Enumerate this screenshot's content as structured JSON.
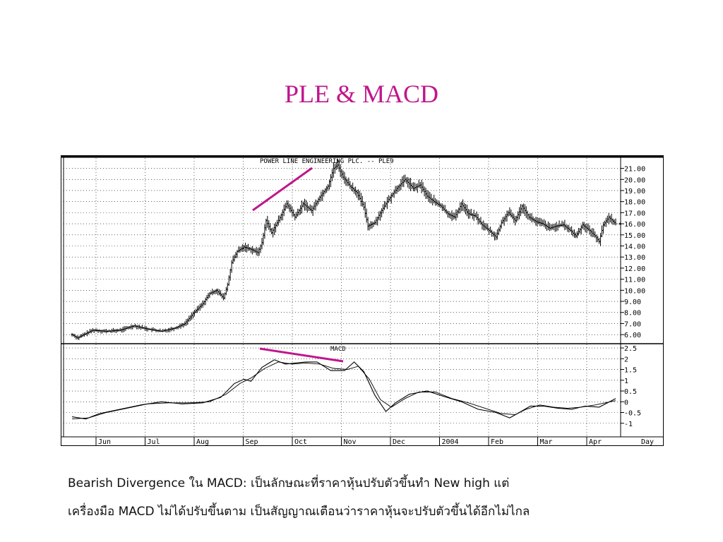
{
  "slide": {
    "title": "PLE & MACD",
    "caption_line_1": "Bearish Divergence ใน MACD: เป็นลักษณะที่ราคาหุ้นปรับตัวขึ้นทำ New high แต่",
    "caption_line_2": "เครื่องมือ MACD ไม่ได้ปรับขึ้นตาม เป็นสัญญาณเตือนว่าราคาหุ้นจะปรับตัวขึ้นได้อีกไม่ไกล"
  },
  "colors": {
    "title": "#c0168c",
    "annotation": "#c0168c",
    "line": "#000000"
  },
  "chart_data": [
    {
      "type": "ohlc",
      "title": "POWER LINE ENGINEERING PLC. -- PLE9",
      "ylim": [
        5.5,
        21.8
      ],
      "yticks": [
        "21.00",
        "20.00",
        "19.00",
        "18.00",
        "17.00",
        "16.00",
        "15.00",
        "14.00",
        "13.00",
        "12.00",
        "11.00",
        "10.00",
        "9.00",
        "8.00",
        "7.00",
        "6.00"
      ],
      "grid": true,
      "anchors": [
        [
          0,
          6.0
        ],
        [
          4,
          5.7
        ],
        [
          10,
          6.1
        ],
        [
          15,
          6.4
        ],
        [
          25,
          6.3
        ],
        [
          35,
          6.4
        ],
        [
          45,
          6.8
        ],
        [
          55,
          6.5
        ],
        [
          65,
          6.3
        ],
        [
          75,
          6.6
        ],
        [
          82,
          7.0
        ],
        [
          88,
          7.9
        ],
        [
          95,
          8.8
        ],
        [
          100,
          9.7
        ],
        [
          105,
          10.0
        ],
        [
          110,
          9.3
        ],
        [
          113,
          10.5
        ],
        [
          116,
          12.5
        ],
        [
          120,
          13.5
        ],
        [
          125,
          13.9
        ],
        [
          130,
          13.7
        ],
        [
          135,
          13.4
        ],
        [
          138,
          14.3
        ],
        [
          141,
          16.3
        ],
        [
          145,
          15.2
        ],
        [
          150,
          16.3
        ],
        [
          156,
          17.8
        ],
        [
          162,
          16.6
        ],
        [
          168,
          17.8
        ],
        [
          174,
          17.2
        ],
        [
          180,
          18.4
        ],
        [
          186,
          19.4
        ],
        [
          190,
          21.0
        ],
        [
          193,
          21.3
        ],
        [
          197,
          20.2
        ],
        [
          202,
          19.4
        ],
        [
          207,
          18.8
        ],
        [
          212,
          17.5
        ],
        [
          215,
          15.8
        ],
        [
          220,
          16.1
        ],
        [
          225,
          17.2
        ],
        [
          230,
          18.2
        ],
        [
          236,
          19.2
        ],
        [
          242,
          20.0
        ],
        [
          248,
          19.2
        ],
        [
          253,
          19.5
        ],
        [
          258,
          18.5
        ],
        [
          263,
          18.0
        ],
        [
          268,
          17.6
        ],
        [
          273,
          16.9
        ],
        [
          278,
          16.6
        ],
        [
          283,
          17.8
        ],
        [
          288,
          16.9
        ],
        [
          293,
          16.7
        ],
        [
          298,
          15.9
        ],
        [
          303,
          15.4
        ],
        [
          308,
          14.8
        ],
        [
          312,
          16.1
        ],
        [
          317,
          17.0
        ],
        [
          322,
          16.3
        ],
        [
          327,
          17.6
        ],
        [
          332,
          16.6
        ],
        [
          337,
          16.2
        ],
        [
          342,
          16.0
        ],
        [
          347,
          15.6
        ],
        [
          352,
          15.8
        ],
        [
          357,
          15.9
        ],
        [
          362,
          15.4
        ],
        [
          366,
          14.9
        ],
        [
          371,
          15.9
        ],
        [
          376,
          15.4
        ],
        [
          380,
          14.9
        ],
        [
          383,
          14.4
        ],
        [
          386,
          15.9
        ],
        [
          390,
          16.6
        ],
        [
          395,
          16.0
        ]
      ]
    },
    {
      "type": "line",
      "title": "MACD",
      "ylim": [
        -1.5,
        2.6
      ],
      "yticks": [
        "2.5",
        "2",
        "1.5",
        "1",
        "0.5",
        "0",
        "-0.5",
        "-1"
      ],
      "grid": true,
      "series": [
        {
          "points": [
            [
              0,
              -0.7
            ],
            [
              10,
              -0.8
            ],
            [
              20,
              -0.55
            ],
            [
              35,
              -0.35
            ],
            [
              50,
              -0.15
            ],
            [
              65,
              0.0
            ],
            [
              80,
              -0.1
            ],
            [
              95,
              -0.05
            ],
            [
              108,
              0.2
            ],
            [
              118,
              0.85
            ],
            [
              125,
              1.05
            ],
            [
              130,
              0.95
            ],
            [
              138,
              1.6
            ],
            [
              147,
              1.95
            ],
            [
              155,
              1.75
            ],
            [
              162,
              1.8
            ],
            [
              170,
              1.85
            ],
            [
              178,
              1.85
            ],
            [
              188,
              1.45
            ],
            [
              198,
              1.45
            ],
            [
              205,
              1.85
            ],
            [
              212,
              1.4
            ],
            [
              220,
              0.3
            ],
            [
              228,
              -0.45
            ],
            [
              235,
              -0.05
            ],
            [
              245,
              0.35
            ],
            [
              258,
              0.5
            ],
            [
              270,
              0.25
            ],
            [
              283,
              0.0
            ],
            [
              295,
              -0.35
            ],
            [
              308,
              -0.5
            ],
            [
              318,
              -0.75
            ],
            [
              325,
              -0.5
            ],
            [
              333,
              -0.2
            ],
            [
              343,
              -0.2
            ],
            [
              353,
              -0.3
            ],
            [
              363,
              -0.35
            ],
            [
              373,
              -0.2
            ],
            [
              383,
              -0.25
            ],
            [
              395,
              0.15
            ]
          ]
        },
        {
          "points": [
            [
              0,
              -0.8
            ],
            [
              12,
              -0.75
            ],
            [
              25,
              -0.5
            ],
            [
              40,
              -0.3
            ],
            [
              55,
              -0.1
            ],
            [
              70,
              -0.05
            ],
            [
              85,
              -0.05
            ],
            [
              100,
              0.0
            ],
            [
              112,
              0.35
            ],
            [
              122,
              0.85
            ],
            [
              130,
              1.1
            ],
            [
              140,
              1.55
            ],
            [
              150,
              1.85
            ],
            [
              160,
              1.75
            ],
            [
              170,
              1.8
            ],
            [
              180,
              1.75
            ],
            [
              190,
              1.55
            ],
            [
              200,
              1.5
            ],
            [
              208,
              1.65
            ],
            [
              216,
              1.05
            ],
            [
              224,
              0.1
            ],
            [
              232,
              -0.25
            ],
            [
              242,
              0.15
            ],
            [
              252,
              0.45
            ],
            [
              264,
              0.45
            ],
            [
              276,
              0.15
            ],
            [
              288,
              -0.05
            ],
            [
              300,
              -0.3
            ],
            [
              312,
              -0.55
            ],
            [
              322,
              -0.6
            ],
            [
              330,
              -0.35
            ],
            [
              340,
              -0.15
            ],
            [
              350,
              -0.25
            ],
            [
              360,
              -0.3
            ],
            [
              370,
              -0.25
            ],
            [
              380,
              -0.15
            ],
            [
              395,
              0.05
            ]
          ]
        }
      ]
    }
  ],
  "x_axis": {
    "labels": [
      "Jun",
      "Jul",
      "Aug",
      "Sep",
      "Oct",
      "Nov",
      "Dec",
      "2004",
      "Feb",
      "Mar",
      "Apr"
    ],
    "unit_label": "Day"
  }
}
